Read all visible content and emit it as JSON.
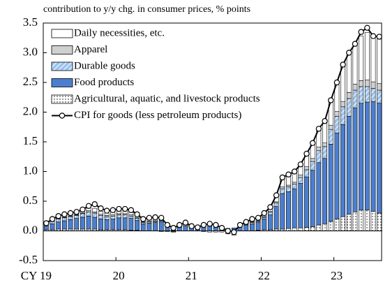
{
  "chart_data": {
    "type": "bar",
    "stacked": true,
    "title": "contribution to y/y chg. in consumer prices, % points",
    "categories": [
      "CY 19",
      null,
      null,
      null,
      null,
      null,
      null,
      null,
      null,
      null,
      null,
      null,
      "20",
      null,
      null,
      null,
      null,
      null,
      null,
      null,
      null,
      null,
      null,
      null,
      "21",
      null,
      null,
      null,
      null,
      null,
      null,
      null,
      null,
      null,
      null,
      null,
      "22",
      null,
      null,
      null,
      null,
      null,
      null,
      null,
      null,
      null,
      null,
      null,
      "23",
      null,
      null,
      null,
      null,
      null,
      null,
      null
    ],
    "ylim": [
      -0.5,
      3.5
    ],
    "yticks": [
      -0.5,
      {
        "value": 0,
        "label": "0.0"
      },
      0.5,
      {
        "value": 1,
        "label": "1.0"
      },
      1.5,
      {
        "value": 2,
        "label": "2.0"
      },
      2.5,
      {
        "value": 3,
        "label": "3.0"
      },
      3.5
    ],
    "legend": "upper-left",
    "series": [
      {
        "name": "Daily necessities, etc.",
        "color": "#ffffff",
        "pattern": "none",
        "values": [
          0.01,
          0.03,
          0.04,
          0.05,
          0.05,
          0.05,
          0.06,
          0.06,
          0.06,
          0.05,
          0.04,
          0.05,
          0.06,
          0.06,
          0.06,
          0.05,
          0.04,
          0.04,
          0.05,
          0.05,
          0.03,
          0.02,
          0.03,
          0.04,
          0.02,
          0.01,
          0.02,
          0.03,
          0.02,
          0.01,
          0.0,
          0.0,
          0.02,
          0.03,
          0.04,
          0.05,
          0.06,
          0.08,
          0.1,
          0.15,
          0.16,
          0.18,
          0.2,
          0.22,
          0.25,
          0.32,
          0.35,
          0.4,
          0.5,
          0.6,
          0.65,
          0.7,
          0.75,
          0.8,
          0.77,
          0.75
        ]
      },
      {
        "name": "Apparel",
        "color": "#d0d0d0",
        "pattern": "none",
        "values": [
          0.01,
          0.01,
          0.01,
          0.01,
          0.01,
          0.01,
          0.01,
          0.02,
          0.02,
          0.02,
          0.02,
          0.02,
          0.02,
          0.02,
          0.02,
          0.01,
          0.01,
          0.01,
          0.01,
          0.01,
          0.01,
          0.0,
          0.0,
          0.0,
          0.0,
          0.0,
          0.0,
          0.0,
          0.0,
          0.0,
          0.0,
          0.0,
          0.0,
          0.0,
          0.01,
          0.01,
          0.01,
          0.02,
          0.02,
          0.03,
          0.03,
          0.03,
          0.04,
          0.05,
          0.05,
          0.06,
          0.06,
          0.07,
          0.08,
          0.09,
          0.1,
          0.1,
          0.1,
          0.11,
          0.11,
          0.11
        ]
      },
      {
        "name": "Durable goods",
        "color": "#9cc3ee",
        "pattern": "hatch",
        "values": [
          0.03,
          0.04,
          0.05,
          0.05,
          0.05,
          0.05,
          0.06,
          0.07,
          0.07,
          0.06,
          0.05,
          0.05,
          0.05,
          0.05,
          0.04,
          0.03,
          0.02,
          0.02,
          0.02,
          0.02,
          0.0,
          -0.01,
          0.0,
          0.02,
          0.0,
          0.0,
          0.01,
          0.02,
          0.02,
          0.0,
          -0.03,
          -0.04,
          0.0,
          0.01,
          0.02,
          0.02,
          0.03,
          0.04,
          0.06,
          0.08,
          0.08,
          0.08,
          0.1,
          0.12,
          0.15,
          0.2,
          0.2,
          0.25,
          0.28,
          0.3,
          0.3,
          0.3,
          0.28,
          0.26,
          0.22,
          0.22
        ]
      },
      {
        "name": "Food products",
        "color": "#4a7fd0",
        "pattern": "none",
        "values": [
          0.06,
          0.1,
          0.12,
          0.14,
          0.16,
          0.18,
          0.2,
          0.22,
          0.2,
          0.18,
          0.17,
          0.18,
          0.2,
          0.2,
          0.2,
          0.17,
          0.12,
          0.13,
          0.14,
          0.15,
          0.07,
          0.03,
          0.06,
          0.08,
          0.05,
          0.04,
          0.08,
          0.09,
          0.08,
          0.05,
          0.04,
          0.05,
          0.08,
          0.1,
          0.12,
          0.13,
          0.18,
          0.25,
          0.38,
          0.6,
          0.62,
          0.66,
          0.75,
          0.85,
          0.95,
          1.05,
          1.1,
          1.3,
          1.45,
          1.55,
          1.65,
          1.75,
          1.8,
          1.82,
          1.85,
          1.85
        ]
      },
      {
        "name": "Agricultural, aquatic, and livestock products",
        "color": "#ffffff",
        "pattern": "dots",
        "values": [
          0.02,
          0.02,
          0.03,
          0.03,
          0.03,
          0.03,
          0.03,
          0.03,
          0.03,
          0.02,
          0.02,
          0.02,
          0.02,
          0.02,
          0.01,
          0.01,
          0.0,
          0.0,
          0.0,
          -0.01,
          -0.01,
          -0.01,
          0.0,
          0.0,
          0.0,
          0.0,
          -0.01,
          -0.02,
          -0.02,
          -0.02,
          -0.02,
          -0.03,
          0.0,
          0.0,
          0.0,
          0.01,
          0.02,
          0.02,
          0.03,
          0.03,
          0.04,
          0.05,
          0.05,
          0.06,
          0.07,
          0.1,
          0.12,
          0.16,
          0.2,
          0.24,
          0.28,
          0.32,
          0.35,
          0.35,
          0.33,
          0.3
        ]
      },
      {
        "name": "CPI for goods (less petroleum products)",
        "type": "line",
        "color": "#000000",
        "values": [
          0.13,
          0.2,
          0.25,
          0.28,
          0.3,
          0.32,
          0.36,
          0.42,
          0.45,
          0.38,
          0.34,
          0.35,
          0.37,
          0.37,
          0.35,
          0.28,
          0.2,
          0.22,
          0.23,
          0.22,
          0.1,
          0.05,
          0.1,
          0.14,
          0.08,
          0.06,
          0.1,
          0.12,
          0.1,
          0.05,
          0.0,
          -0.02,
          0.1,
          0.15,
          0.2,
          0.22,
          0.3,
          0.4,
          0.6,
          0.9,
          0.95,
          1.0,
          1.12,
          1.3,
          1.48,
          1.72,
          1.85,
          2.2,
          2.5,
          2.8,
          3.0,
          3.15,
          3.35,
          3.42,
          3.28,
          3.27
        ]
      }
    ]
  }
}
